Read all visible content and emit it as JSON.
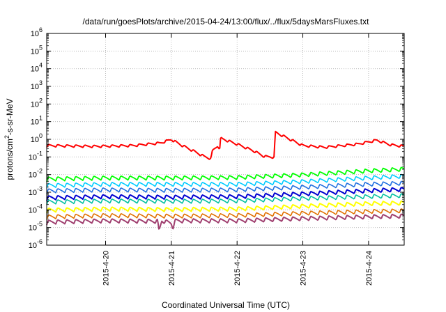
{
  "chart_data": {
    "type": "line",
    "title": "/data/run/goesPlots/archive/2015-04-24/13:00/flux/../flux/5daysMarsFluxes.txt",
    "xlabel": "Coordinated Universal Time (UTC)",
    "ylabel_parts": {
      "pre": "protons/cm",
      "sup": "2",
      "post": "-s-sr-MeV"
    },
    "x_range": [
      "2015-04-19 02:30",
      "2015-04-24 13:00"
    ],
    "y_scale": "log",
    "ylim": [
      1e-06,
      1000000.0
    ],
    "y_ticks": [
      {
        "base": "10",
        "exp": "6",
        "value": 1000000.0
      },
      {
        "base": "10",
        "exp": "5",
        "value": 100000.0
      },
      {
        "base": "10",
        "exp": "4",
        "value": 10000.0
      },
      {
        "base": "10",
        "exp": "3",
        "value": 1000.0
      },
      {
        "base": "10",
        "exp": "2",
        "value": 100.0
      },
      {
        "base": "10",
        "exp": "1",
        "value": 10.0
      },
      {
        "base": "10",
        "exp": "0",
        "value": 1.0
      },
      {
        "base": "10",
        "exp": "-1",
        "value": 0.1
      },
      {
        "base": "10",
        "exp": "-2",
        "value": 0.01
      },
      {
        "base": "10",
        "exp": "-3",
        "value": 0.001
      },
      {
        "base": "10",
        "exp": "-4",
        "value": 0.0001
      },
      {
        "base": "10",
        "exp": "-5",
        "value": 1e-05
      },
      {
        "base": "10",
        "exp": "-6",
        "value": 1e-06
      }
    ],
    "x_ticks": [
      "2015-4-20",
      "2015-4-21",
      "2015-4-22",
      "2015-4-23",
      "2015-4-24"
    ],
    "grid": true,
    "legend": "none",
    "sawtooth_period_hours": 3.3,
    "series": [
      {
        "color": "#ff0000",
        "width": 2.0,
        "points": [
          [
            "2015-04-19 02:30",
            0.5
          ],
          [
            "2015-04-19 20:00",
            0.45
          ],
          [
            "2015-04-20 10:00",
            0.5
          ],
          [
            "2015-04-20 20:00",
            0.7
          ],
          [
            "2015-04-21 00:00",
            1.1
          ],
          [
            "2015-04-21 04:00",
            0.5
          ],
          [
            "2015-04-21 08:00",
            0.25
          ],
          [
            "2015-04-21 12:00",
            0.12
          ],
          [
            "2015-04-21 14:30",
            0.09
          ],
          [
            "2015-04-21 15:00",
            0.25
          ],
          [
            "2015-04-21 17:00",
            0.5
          ],
          [
            "2015-04-21 17:40",
            0.3
          ],
          [
            "2015-04-21 18:00",
            1.3
          ],
          [
            "2015-04-22 00:00",
            0.6
          ],
          [
            "2015-04-22 06:00",
            0.25
          ],
          [
            "2015-04-22 10:00",
            0.12
          ],
          [
            "2015-04-22 13:30",
            0.11
          ],
          [
            "2015-04-22 14:00",
            2.8
          ],
          [
            "2015-04-22 16:00",
            2.0
          ],
          [
            "2015-04-23 00:00",
            0.5
          ],
          [
            "2015-04-23 08:00",
            0.4
          ],
          [
            "2015-04-23 20:00",
            0.6
          ],
          [
            "2015-04-24 03:00",
            1.0
          ],
          [
            "2015-04-24 08:00",
            0.55
          ],
          [
            "2015-04-24 13:00",
            0.45
          ]
        ]
      },
      {
        "color": "#00ff00",
        "width": 1.8,
        "points": [
          [
            "2015-04-19 02:30",
            0.007
          ],
          [
            "2015-04-20 00:00",
            0.008
          ],
          [
            "2015-04-21 00:00",
            0.008
          ],
          [
            "2015-04-22 00:00",
            0.0085
          ],
          [
            "2015-04-23 00:00",
            0.012
          ],
          [
            "2015-04-24 00:00",
            0.02
          ],
          [
            "2015-04-24 13:00",
            0.025
          ]
        ]
      },
      {
        "color": "#00ccff",
        "width": 1.6,
        "points": [
          [
            "2015-04-19 02:30",
            0.003
          ],
          [
            "2015-04-20 00:00",
            0.0035
          ],
          [
            "2015-04-21 00:00",
            0.0035
          ],
          [
            "2015-04-22 00:00",
            0.0035
          ],
          [
            "2015-04-23 00:00",
            0.005
          ],
          [
            "2015-04-24 00:00",
            0.008
          ],
          [
            "2015-04-24 13:00",
            0.01
          ]
        ]
      },
      {
        "color": "#2070e0",
        "width": 1.6,
        "points": [
          [
            "2015-04-19 02:30",
            0.0015
          ],
          [
            "2015-04-20 00:00",
            0.0017
          ],
          [
            "2015-04-21 00:00",
            0.0016
          ],
          [
            "2015-04-22 00:00",
            0.0017
          ],
          [
            "2015-04-23 00:00",
            0.0024
          ],
          [
            "2015-04-24 00:00",
            0.0035
          ],
          [
            "2015-04-24 13:00",
            0.004
          ]
        ]
      },
      {
        "color": "#0000d0",
        "width": 2.0,
        "points": [
          [
            "2015-04-19 02:30",
            0.0006
          ],
          [
            "2015-04-20 00:00",
            0.0007
          ],
          [
            "2015-04-21 00:00",
            0.00065
          ],
          [
            "2015-04-22 00:00",
            0.0007
          ],
          [
            "2015-04-23 00:00",
            0.001
          ],
          [
            "2015-04-24 00:00",
            0.0015
          ],
          [
            "2015-04-24 13:00",
            0.0018
          ]
        ]
      },
      {
        "color": "#00c0a0",
        "width": 1.6,
        "points": [
          [
            "2015-04-19 02:30",
            0.00035
          ],
          [
            "2015-04-20 00:00",
            0.0004
          ],
          [
            "2015-04-21 00:00",
            0.00038
          ],
          [
            "2015-04-22 00:00",
            0.0004
          ],
          [
            "2015-04-23 00:00",
            0.00055
          ],
          [
            "2015-04-24 00:00",
            0.0007
          ],
          [
            "2015-04-24 13:00",
            0.0008
          ]
        ]
      },
      {
        "color": "#ffff00",
        "width": 2.0,
        "points": [
          [
            "2015-04-19 02:30",
            0.00012
          ],
          [
            "2015-04-20 00:00",
            0.00014
          ],
          [
            "2015-04-21 00:00",
            0.00013
          ],
          [
            "2015-04-22 00:00",
            0.00014
          ],
          [
            "2015-04-23 00:00",
            0.0002
          ],
          [
            "2015-04-24 00:00",
            0.00028
          ],
          [
            "2015-04-24 13:00",
            0.0003
          ]
        ]
      },
      {
        "color": "#e07000",
        "width": 1.6,
        "points": [
          [
            "2015-04-19 02:30",
            5e-05
          ],
          [
            "2015-04-20 00:00",
            6e-05
          ],
          [
            "2015-04-21 00:00",
            5.5e-05
          ],
          [
            "2015-04-22 00:00",
            6e-05
          ],
          [
            "2015-04-23 00:00",
            8e-05
          ],
          [
            "2015-04-24 00:00",
            0.0001
          ],
          [
            "2015-04-24 13:00",
            0.00011
          ]
        ]
      },
      {
        "color": "#a04070",
        "width": 2.0,
        "points": [
          [
            "2015-04-19 02:30",
            2.5e-05
          ],
          [
            "2015-04-20 00:00",
            3e-05
          ],
          [
            "2015-04-20 19:00",
            2.8e-05
          ],
          [
            "2015-04-20 19:30",
            7.5e-06
          ],
          [
            "2015-04-20 20:30",
            3e-05
          ],
          [
            "2015-04-21 00:00",
            2.2e-05
          ],
          [
            "2015-04-21 00:30",
            1.2e-05
          ],
          [
            "2015-04-21 01:30",
            3e-05
          ],
          [
            "2015-04-22 00:00",
            3e-05
          ],
          [
            "2015-04-23 00:00",
            4e-05
          ],
          [
            "2015-04-24 00:00",
            5e-05
          ],
          [
            "2015-04-24 13:00",
            5.5e-05
          ]
        ]
      }
    ]
  }
}
